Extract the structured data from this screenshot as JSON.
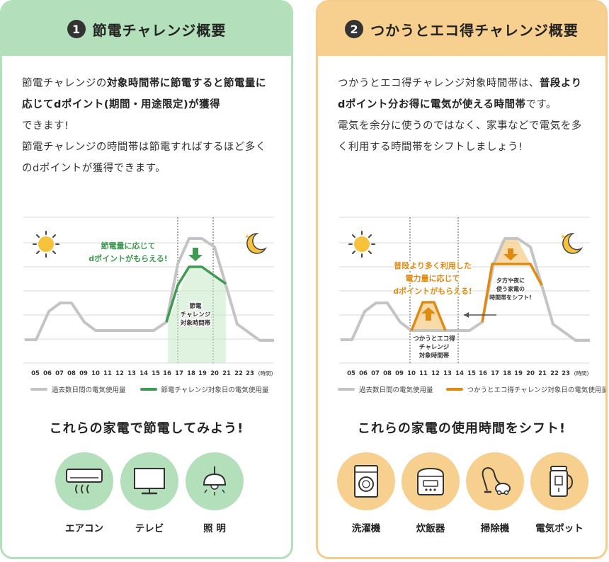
{
  "challenge_card": {
    "number": "1",
    "title": "節電チャレンジ概要",
    "intro": {
      "s1": "節電チャレンジの",
      "b1": "対象時間帯に節電すると節電量に応じてdポイント(期間・用途限定)が獲得",
      "s2": "できます!",
      "s3": "節電チャレンジの時間帯は節電すればするほど多くのdポイントが獲得できます。"
    },
    "chart": {
      "callout": [
        "節電量に応じて",
        "dポイントがもらえる!"
      ],
      "zone_label": [
        "節電",
        "チャレンジ",
        "対象時間帯"
      ],
      "hours": [
        "05",
        "06",
        "07",
        "08",
        "09",
        "10",
        "11",
        "12",
        "13",
        "14",
        "15",
        "16",
        "17",
        "18",
        "19",
        "20",
        "21",
        "22",
        "23",
        "(時間)"
      ],
      "legend_past": "過去数日間の電気使用量",
      "legend_event": "節電チャレンジ対象日の電気使用量"
    },
    "subtitle": "これらの家電で節電してみよう!",
    "appliances": [
      {
        "label": "エアコン",
        "icon": "air-conditioner-icon"
      },
      {
        "label": "テレビ",
        "icon": "television-icon"
      },
      {
        "label": "照 明",
        "icon": "ceiling-light-icon"
      }
    ]
  },
  "eco_card": {
    "number": "2",
    "title": "つかうとエコ得チャレンジ概要",
    "intro": {
      "s1": "つかうとエコ得チャレンジ対象時間帯は、",
      "b1": "普段よりdポイント分お得に電気が使える時間帯",
      "s2": "です。",
      "s3": "電気を余分に使うのではなく、家事などで電気を多く利用する時間帯をシフトしましょう!"
    },
    "chart": {
      "callout": [
        "普段より多く利用した",
        "電力量に応じて",
        "dポイントがもらえる!"
      ],
      "shift_note": [
        "夕方や夜に",
        "使う家電の",
        "時間帯をシフト!"
      ],
      "zone_label": [
        "つかうとエコ得",
        "チャレンジ",
        "対象時間帯"
      ],
      "hours": [
        "05",
        "06",
        "07",
        "08",
        "09",
        "10",
        "11",
        "12",
        "13",
        "14",
        "15",
        "16",
        "17",
        "18",
        "19",
        "20",
        "21",
        "22",
        "23",
        "(時間)"
      ],
      "legend_past": "過去数日間の電気使用量",
      "legend_event": "つかうとエコ得チャレンジ対象日の電気使用量"
    },
    "subtitle": "これらの家電の使用時間をシフト!",
    "appliances": [
      {
        "label": "洗濯機",
        "icon": "washing-machine-icon"
      },
      {
        "label": "炊飯器",
        "icon": "rice-cooker-icon"
      },
      {
        "label": "掃除機",
        "icon": "vacuum-cleaner-icon"
      },
      {
        "label": "電気ポット",
        "icon": "electric-pot-icon"
      }
    ]
  },
  "colors": {
    "green": "#b3dfbb",
    "green_dark": "#3f9a52",
    "orange": "#f7cf8e",
    "orange_dark": "#e08a12",
    "gray_line": "#c4c4c4"
  }
}
